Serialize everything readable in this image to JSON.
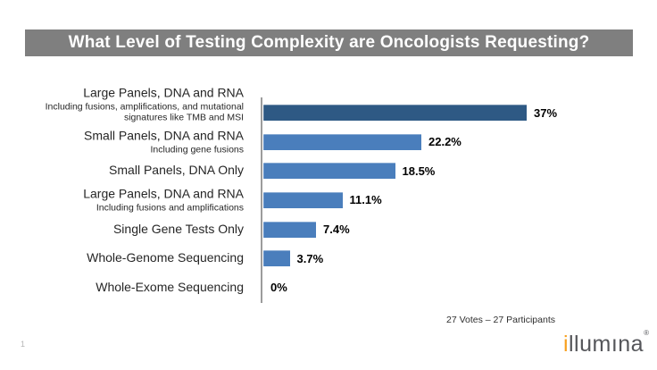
{
  "slide": {
    "page_number": "1",
    "title": "What Level of Testing Complexity are Oncologists Requesting?",
    "footnote": "27 Votes – 27 Participants",
    "logo": {
      "prefix": "i",
      "rest": "llumına",
      "registered": "®"
    }
  },
  "colors": {
    "title_bar_bg": "#7F7F7F",
    "title_text": "#FFFFFF",
    "bar_primary": "#2E5984",
    "bar_secondary": "#4A7EBC",
    "axis_line": "#9C9C9C",
    "value_label": "#000000",
    "category_label": "#262626",
    "logo_gray": "#55565A",
    "logo_orange": "#F8A01E"
  },
  "chart_data": {
    "type": "bar",
    "orientation": "horizontal",
    "title": "What Level of Testing Complexity are Oncologists Requesting?",
    "categories": [
      {
        "label": "Large Panels, DNA and RNA",
        "sublabel": "Including fusions, amplifications, and mutational signatures like TMB and MSI"
      },
      {
        "label": "Small Panels, DNA and RNA",
        "sublabel": "Including gene fusions"
      },
      {
        "label": "Small Panels, DNA Only",
        "sublabel": ""
      },
      {
        "label": "Large Panels, DNA and RNA",
        "sublabel": "Including fusions and amplifications"
      },
      {
        "label": "Single Gene Tests Only",
        "sublabel": ""
      },
      {
        "label": "Whole-Genome Sequencing",
        "sublabel": ""
      },
      {
        "label": "Whole-Exome Sequencing",
        "sublabel": ""
      }
    ],
    "values": [
      37,
      22.2,
      18.5,
      11.1,
      7.4,
      3.7,
      0
    ],
    "value_labels": [
      "37%",
      "22.2%",
      "18.5%",
      "11.1%",
      "7.4%",
      "3.7%",
      "0%"
    ],
    "xlim": [
      0,
      40
    ],
    "grid": false,
    "legend": false,
    "annotation": "27 Votes – 27 Participants"
  }
}
